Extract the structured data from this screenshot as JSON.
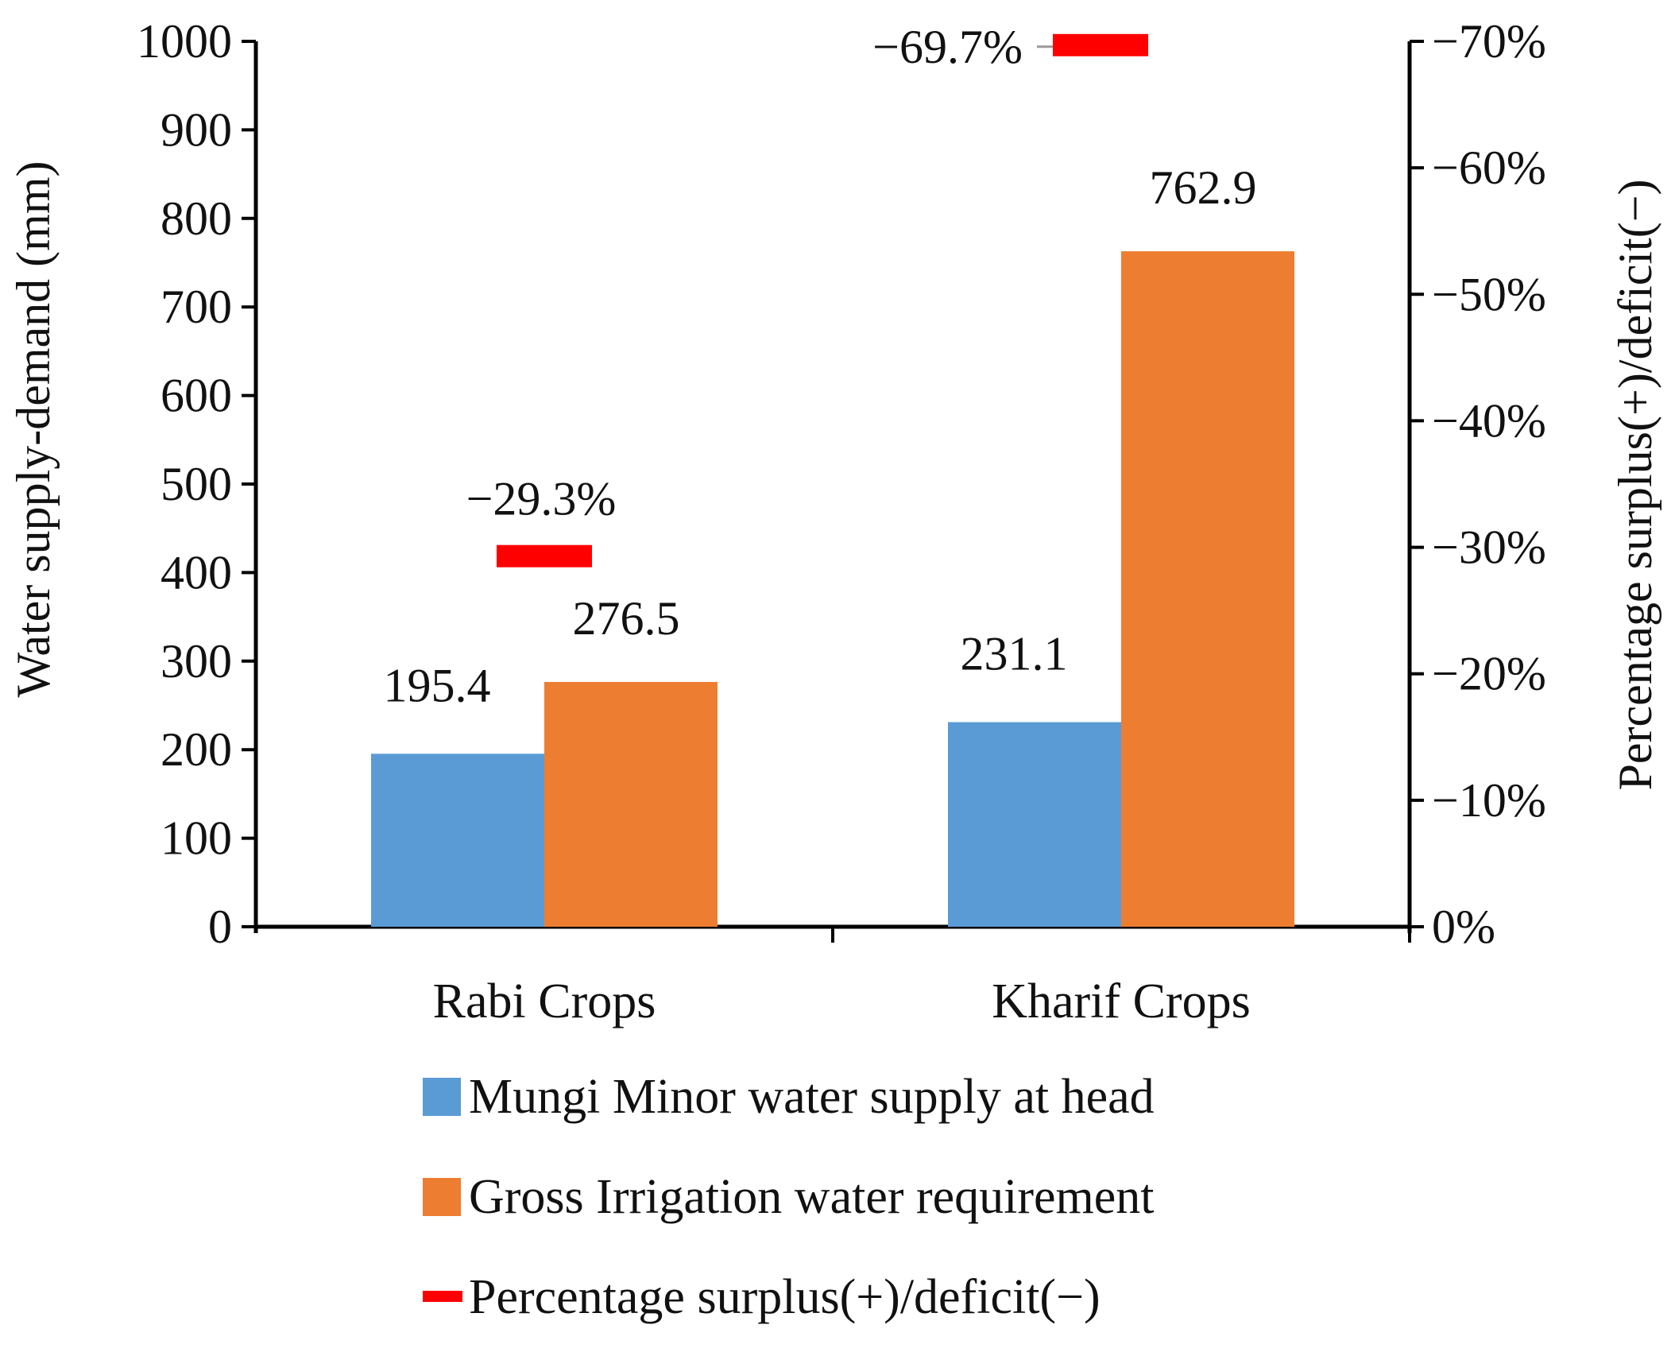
{
  "chart_data": {
    "type": "bar",
    "categories": [
      "Rabi Crops",
      "Kharif Crops"
    ],
    "series": [
      {
        "name": "Mungi Minor water supply at head",
        "values": [
          195.4,
          231.1
        ],
        "labels": [
          "195.4",
          "231.1"
        ],
        "color": "#5b9bd5"
      },
      {
        "name": "Gross Irrigation water requirement",
        "values": [
          276.5,
          762.9
        ],
        "labels": [
          "276.5",
          "762.9"
        ],
        "color": "#ed7d31"
      }
    ],
    "secondary_series": {
      "name": "Percentage surplus(+)/deficit(−)",
      "type": "marker",
      "values": [
        -29.3,
        -69.7
      ],
      "labels": [
        "−29.3%",
        "−69.7%"
      ],
      "color": "#ff0000"
    },
    "ylabel": "Water supply-demand (mm)",
    "y2label": "Percentage surplus(+)/deficit(−)",
    "ylim": [
      0,
      1000
    ],
    "y_ticks": [
      "0",
      "100",
      "200",
      "300",
      "400",
      "500",
      "600",
      "700",
      "800",
      "900",
      "1000"
    ],
    "y2lim": [
      0,
      -70
    ],
    "y2_ticks": [
      "0%",
      "−10%",
      "−20%",
      "−30%",
      "−40%",
      "−50%",
      "−60%",
      "−70%"
    ],
    "legend_position": "bottom",
    "grid": false
  }
}
